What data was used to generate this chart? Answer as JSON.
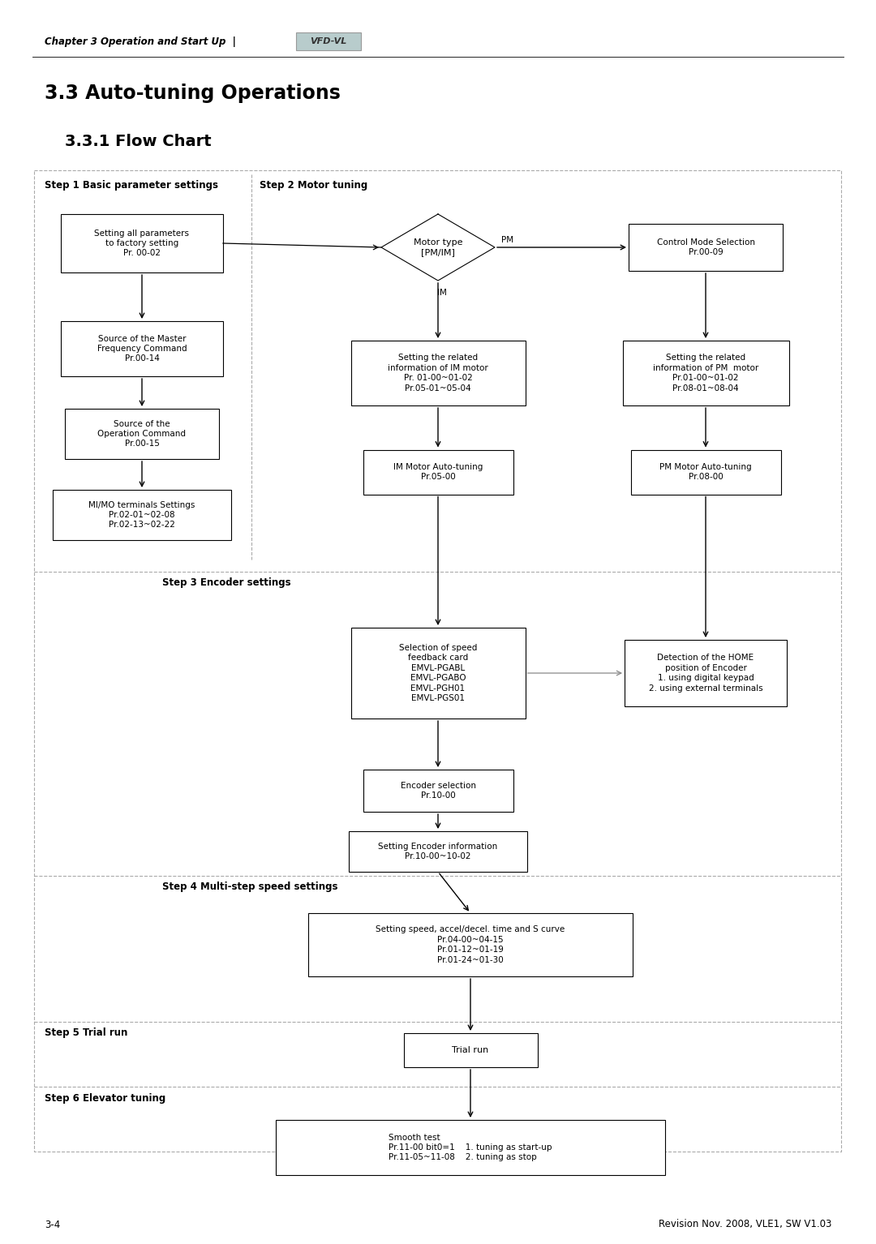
{
  "page_width": 10.8,
  "page_height": 15.34,
  "bg_color": "#ffffff",
  "header_italic": "Chapter 3 Operation and Start Up  |",
  "vfd_label": "VFD-VL",
  "title1": "3.3 Auto-tuning Operations",
  "title2": "3.3.1 Flow Chart",
  "footer_left": "3-4",
  "footer_right": "Revision Nov. 2008, VLE1, SW V1.03"
}
